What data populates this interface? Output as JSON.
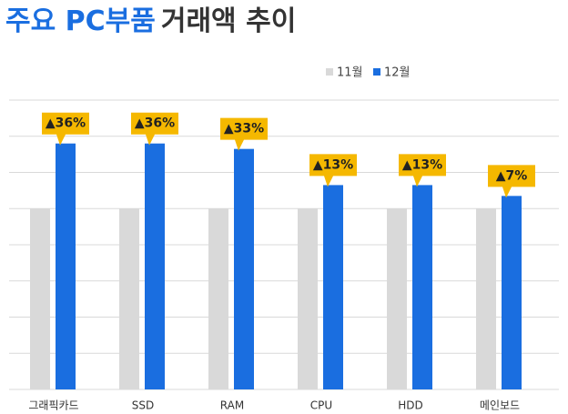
{
  "chart_data": {
    "type": "bar",
    "title_parts": [
      "주요 PC부품",
      "거래액 추이"
    ],
    "title_colors": [
      "#1a6ee0",
      "#333333"
    ],
    "categories": [
      "그래픽카드",
      "SSD",
      "RAM",
      "CPU",
      "HDD",
      "메인보드"
    ],
    "series": [
      {
        "name": "11월",
        "color": "#d9d9d9",
        "values": [
          100,
          100,
          100,
          100,
          100,
          100
        ]
      },
      {
        "name": "12월",
        "color": "#1a6ee0",
        "values": [
          136,
          136,
          133,
          113,
          113,
          107
        ]
      }
    ],
    "annotations": [
      "▲36%",
      "▲36%",
      "▲33%",
      "▲13%",
      "▲13%",
      "▲7%"
    ],
    "annotation_color": "#f5b800",
    "ylim": [
      0,
      160
    ],
    "yticks": [
      0,
      20,
      40,
      60,
      80,
      100,
      120,
      140,
      160
    ],
    "grid": true,
    "legend": "top-right"
  }
}
